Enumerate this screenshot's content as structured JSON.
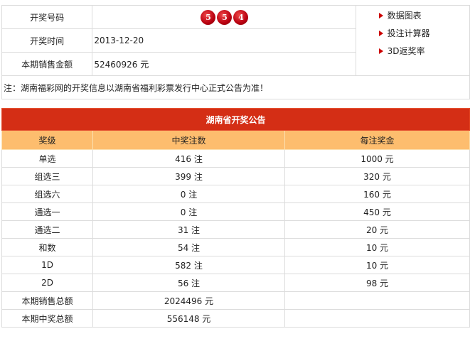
{
  "summary": {
    "number_label": "开奖号码",
    "numbers": [
      "5",
      "5",
      "4"
    ],
    "date_label": "开奖时间",
    "date": "2013-12-20",
    "sales_label": "本期销售金额",
    "sales": "52460926 元",
    "links": [
      "数据图表",
      "投注计算器",
      "3D返奖率"
    ],
    "note": "注：湖南福彩网的开奖信息以湖南省福利彩票发行中心正式公告为准！"
  },
  "announcement": {
    "title": "湖南省开奖公告",
    "headers": [
      "奖级",
      "中奖注数",
      "每注奖金"
    ],
    "rows": [
      [
        "单选",
        "416 注",
        "1000 元"
      ],
      [
        "组选三",
        "399 注",
        "320 元"
      ],
      [
        "组选六",
        "0 注",
        "160 元"
      ],
      [
        "通选一",
        "0 注",
        "450 元"
      ],
      [
        "通选二",
        "31 注",
        "20 元"
      ],
      [
        "和数",
        "54 注",
        "10 元"
      ],
      [
        "1D",
        "582 注",
        "10 元"
      ],
      [
        "2D",
        "56 注",
        "98 元"
      ]
    ],
    "total_sales_label": "本期销售总额",
    "total_sales": "2024496 元",
    "total_prize_label": "本期中奖总额",
    "total_prize": "556148 元"
  },
  "colors": {
    "ball": "#c00010",
    "title_bg": "#d42e15",
    "header_bg": "#fdbd6e"
  }
}
